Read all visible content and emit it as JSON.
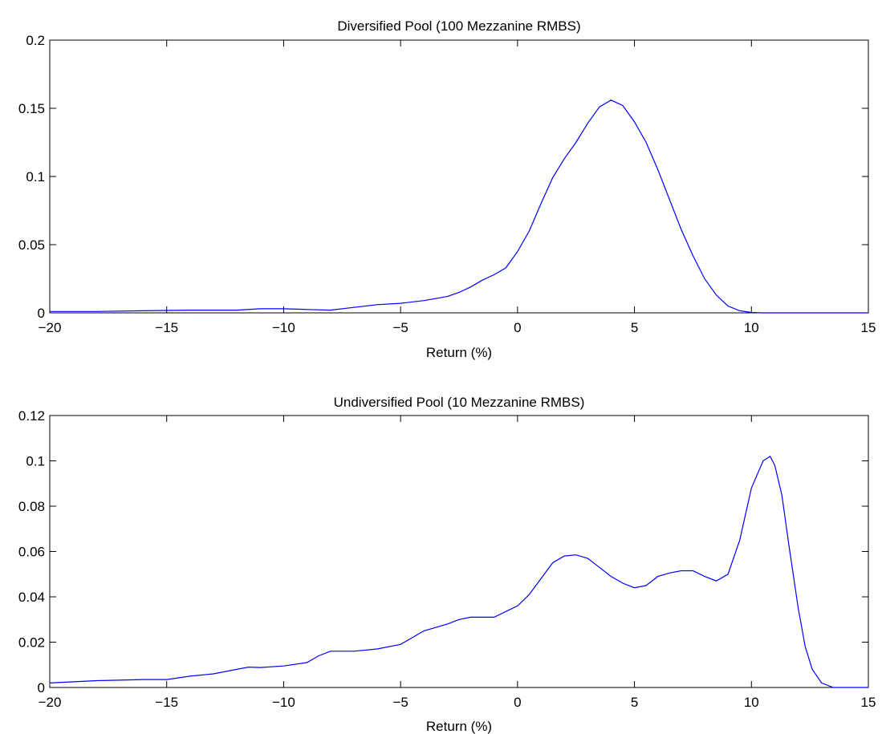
{
  "chart_data": [
    {
      "type": "line",
      "title": "Diversified Pool (100 Mezzanine RMBS)",
      "xlabel": "Return (%)",
      "ylabel": "",
      "xlim": [
        -20,
        15
      ],
      "ylim": [
        0,
        0.2
      ],
      "xticks": [
        -20,
        -15,
        -10,
        -5,
        0,
        5,
        10,
        15
      ],
      "xtick_labels": [
        "−20",
        "−15",
        "−10",
        "−5",
        "0",
        "5",
        "10",
        "15"
      ],
      "yticks": [
        0,
        0.05,
        0.1,
        0.15,
        0.2
      ],
      "ytick_labels": [
        "0",
        "0.05",
        "0.1",
        "0.15",
        "0.2"
      ],
      "grid": false,
      "line_color": "#0000ff",
      "series": [
        {
          "x": [
            -20,
            -18,
            -16,
            -14,
            -12,
            -11,
            -10,
            -9,
            -8,
            -7,
            -6,
            -5,
            -4,
            -3,
            -2.5,
            -2,
            -1.5,
            -1,
            -0.5,
            0,
            0.5,
            1,
            1.5,
            2,
            2.5,
            3,
            3.5,
            4,
            4.5,
            5,
            5.5,
            6,
            6.5,
            7,
            7.5,
            8,
            8.5,
            9,
            9.5,
            10,
            10.5,
            11,
            12,
            13,
            14,
            15
          ],
          "y": [
            0.001,
            0.001,
            0.0015,
            0.002,
            0.002,
            0.003,
            0.003,
            0.0025,
            0.002,
            0.004,
            0.006,
            0.007,
            0.009,
            0.012,
            0.015,
            0.019,
            0.024,
            0.028,
            0.033,
            0.045,
            0.06,
            0.08,
            0.099,
            0.113,
            0.125,
            0.139,
            0.151,
            0.156,
            0.152,
            0.14,
            0.125,
            0.105,
            0.083,
            0.061,
            0.042,
            0.025,
            0.013,
            0.005,
            0.0015,
            0.0003,
            0,
            0,
            0,
            0,
            0,
            0
          ]
        }
      ]
    },
    {
      "type": "line",
      "title": "Undiversified Pool (10 Mezzanine RMBS)",
      "xlabel": "Return (%)",
      "ylabel": "",
      "xlim": [
        -20,
        15
      ],
      "ylim": [
        0,
        0.12
      ],
      "xticks": [
        -20,
        -15,
        -10,
        -5,
        0,
        5,
        10,
        15
      ],
      "xtick_labels": [
        "−20",
        "−15",
        "−10",
        "−5",
        "0",
        "5",
        "10",
        "15"
      ],
      "yticks": [
        0,
        0.02,
        0.04,
        0.06,
        0.08,
        0.1,
        0.12
      ],
      "ytick_labels": [
        "0",
        "0.02",
        "0.04",
        "0.06",
        "0.08",
        "0.1",
        "0.12"
      ],
      "grid": false,
      "line_color": "#0000ff",
      "series": [
        {
          "x": [
            -20,
            -18,
            -16,
            -15,
            -14,
            -13,
            -12,
            -11.5,
            -11,
            -10,
            -9,
            -8.5,
            -8,
            -7.5,
            -7,
            -6,
            -5,
            -4.5,
            -4,
            -3,
            -2.5,
            -2,
            -1.5,
            -1,
            0,
            0.5,
            1,
            1.5,
            2,
            2.5,
            3,
            3.5,
            4,
            4.5,
            5,
            5.5,
            6,
            6.5,
            7,
            7.5,
            8,
            8.5,
            9,
            9.5,
            10,
            10.5,
            10.8,
            11,
            11.3,
            11.6,
            12,
            12.3,
            12.6,
            13,
            13.5,
            14,
            15
          ],
          "y": [
            0.002,
            0.003,
            0.0035,
            0.0035,
            0.005,
            0.006,
            0.008,
            0.009,
            0.0088,
            0.0095,
            0.011,
            0.014,
            0.016,
            0.016,
            0.016,
            0.017,
            0.019,
            0.022,
            0.025,
            0.028,
            0.03,
            0.031,
            0.031,
            0.031,
            0.036,
            0.041,
            0.048,
            0.055,
            0.058,
            0.0585,
            0.057,
            0.053,
            0.049,
            0.046,
            0.044,
            0.045,
            0.049,
            0.0505,
            0.0515,
            0.0515,
            0.049,
            0.047,
            0.05,
            0.065,
            0.088,
            0.1,
            0.102,
            0.098,
            0.085,
            0.063,
            0.035,
            0.018,
            0.008,
            0.002,
            0,
            0,
            0
          ]
        }
      ]
    }
  ]
}
